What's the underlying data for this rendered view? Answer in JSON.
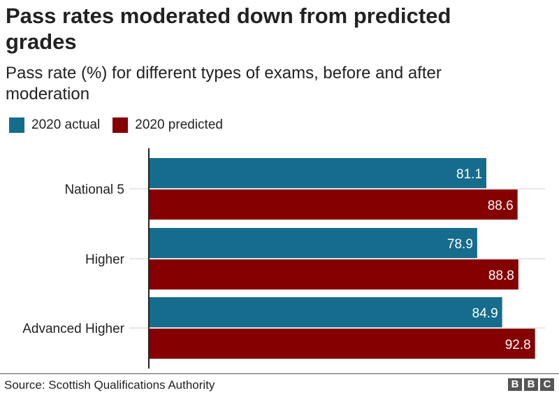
{
  "title": "Pass rates moderated down from predicted grades",
  "subtitle": "Pass rate (%) for different types of exams, before and after moderation",
  "source": "Source: Scottish Qualifications Authority",
  "logo": "BBC",
  "chart_data": {
    "type": "bar",
    "orientation": "horizontal",
    "categories": [
      "National 5",
      "Higher",
      "Advanced Higher"
    ],
    "series": [
      {
        "name": "2020 actual",
        "values": [
          81.1,
          78.9,
          84.9
        ],
        "color": "#166c8c"
      },
      {
        "name": "2020 predicted",
        "values": [
          88.6,
          88.8,
          92.8
        ],
        "color": "#850000"
      }
    ],
    "xlim": [
      0,
      95.2
    ],
    "data_labels": true,
    "grid": true,
    "legend": "top-left"
  }
}
